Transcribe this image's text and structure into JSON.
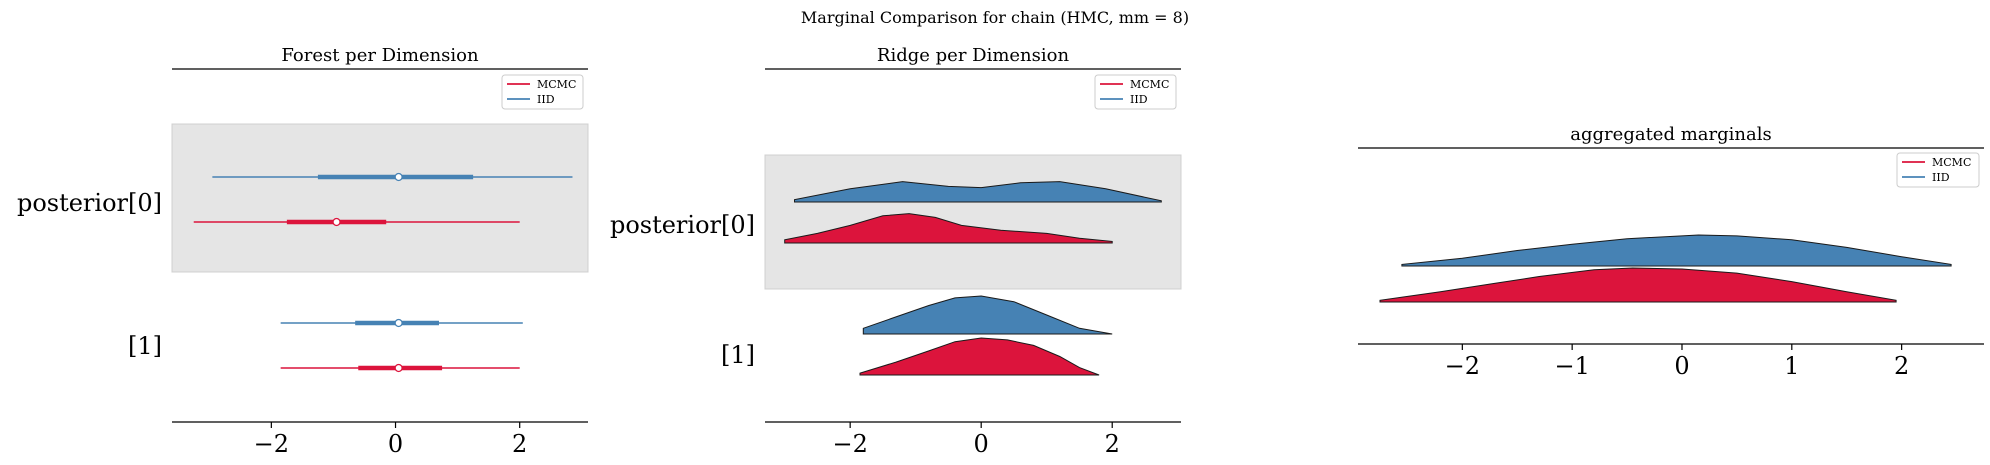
{
  "suptitle": "Marginal Comparison for chain (HMC, mm = 8)",
  "colors": {
    "mcmc": "#dc143c",
    "iid": "#4682b4",
    "shade": "#e5e5e5",
    "axis": "#000000"
  },
  "chart_data": [
    {
      "type": "forest",
      "title": "Forest per Dimension",
      "row_labels": [
        "posterior[0]",
        "[1]"
      ],
      "xticks": [
        -2,
        0,
        2
      ],
      "xlim": [
        -3.6,
        3.1
      ],
      "legend": {
        "placement": "top-right",
        "entries": [
          "MCMC",
          "IID"
        ]
      },
      "series": [
        {
          "name": "IID",
          "rows": [
            {
              "min": -2.95,
              "q25": -1.25,
              "median": 0.05,
              "q75": 1.25,
              "max": 2.85
            },
            {
              "min": -1.85,
              "q25": -0.65,
              "median": 0.05,
              "q75": 0.7,
              "max": 2.05
            }
          ]
        },
        {
          "name": "MCMC",
          "rows": [
            {
              "min": -3.25,
              "q25": -1.75,
              "median": -0.95,
              "q75": -0.15,
              "max": 2.0
            },
            {
              "min": -1.85,
              "q25": -0.6,
              "median": 0.05,
              "q75": 0.75,
              "max": 2.0
            }
          ]
        }
      ]
    },
    {
      "type": "ridge",
      "title": "Ridge per Dimension",
      "row_labels": [
        "posterior[0]",
        "[1]"
      ],
      "xticks": [
        -2,
        0,
        2
      ],
      "xlim": [
        -3.3,
        3.05
      ],
      "legend": {
        "placement": "top-right",
        "entries": [
          "MCMC",
          "IID"
        ]
      },
      "series": [
        {
          "name": "IID",
          "rows": [
            {
              "x": [
                -2.85,
                -2.0,
                -1.2,
                -0.5,
                0.0,
                0.6,
                1.2,
                1.9,
                2.75
              ],
              "density": [
                0.1,
                0.55,
                0.85,
                0.65,
                0.6,
                0.8,
                0.85,
                0.55,
                0.05
              ]
            },
            {
              "x": [
                -1.8,
                -1.3,
                -0.8,
                -0.4,
                0.0,
                0.5,
                1.0,
                1.5,
                2.0
              ],
              "density": [
                0.15,
                0.45,
                0.75,
                0.95,
                1.0,
                0.85,
                0.5,
                0.15,
                0.0
              ]
            }
          ]
        },
        {
          "name": "MCMC",
          "rows": [
            {
              "x": [
                -3.0,
                -2.5,
                -2.0,
                -1.5,
                -1.1,
                -0.7,
                -0.3,
                0.3,
                1.0,
                1.5,
                2.0
              ],
              "density": [
                0.1,
                0.3,
                0.55,
                0.85,
                0.92,
                0.8,
                0.55,
                0.4,
                0.3,
                0.15,
                0.05
              ]
            },
            {
              "x": [
                -1.85,
                -1.3,
                -0.8,
                -0.4,
                0.0,
                0.4,
                0.8,
                1.2,
                1.5,
                1.8
              ],
              "density": [
                0.05,
                0.35,
                0.65,
                0.9,
                1.0,
                0.95,
                0.8,
                0.5,
                0.2,
                0.0
              ]
            }
          ]
        }
      ]
    },
    {
      "type": "ridge",
      "title": "aggregated marginals",
      "row_labels": [],
      "xticks": [
        -2,
        -1,
        0,
        1,
        2
      ],
      "xlim": [
        -2.95,
        2.75
      ],
      "legend": {
        "placement": "top-right",
        "entries": [
          "MCMC",
          "IID"
        ]
      },
      "series": [
        {
          "name": "IID",
          "rows": [
            {
              "x": [
                -2.55,
                -2.0,
                -1.5,
                -1.0,
                -0.5,
                0.0,
                0.15,
                0.5,
                1.0,
                1.5,
                2.0,
                2.45
              ],
              "density": [
                0.05,
                0.25,
                0.5,
                0.7,
                0.88,
                0.97,
                1.0,
                0.97,
                0.85,
                0.6,
                0.3,
                0.05
              ]
            }
          ]
        },
        {
          "name": "MCMC",
          "rows": [
            {
              "x": [
                -2.75,
                -2.2,
                -1.7,
                -1.3,
                -0.8,
                -0.45,
                0.0,
                0.5,
                1.0,
                1.5,
                1.95
              ],
              "density": [
                0.05,
                0.3,
                0.55,
                0.75,
                0.95,
                1.0,
                0.97,
                0.85,
                0.6,
                0.3,
                0.05
              ]
            }
          ]
        }
      ]
    }
  ]
}
